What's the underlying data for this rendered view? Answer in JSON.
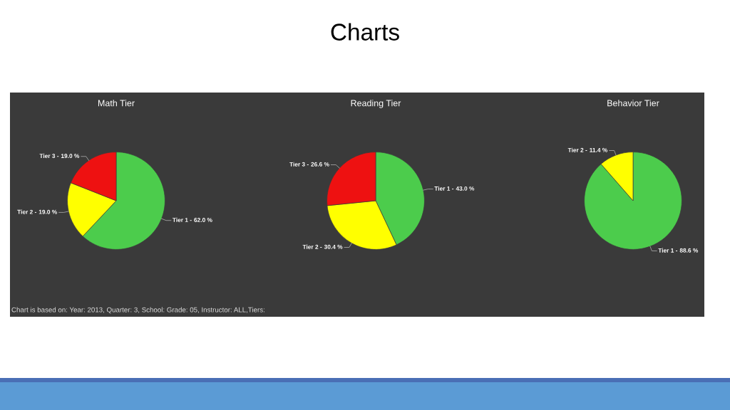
{
  "chart_data": [
    {
      "type": "pie",
      "title": "Math Tier",
      "categories": [
        "Tier 1 -",
        "Tier 2 -",
        "Tier 3 -"
      ],
      "values": [
        62.0,
        19.0,
        19.0
      ],
      "colors": [
        "#4ccc4c",
        "#ffff00",
        "#ee1111"
      ],
      "value_labels": [
        "62.0 %",
        "19.0 %",
        "19.0 %"
      ],
      "annotations": [
        "Charts",
        "Chart is based on: Year: 2013, Quarter: 3, School: Grade: 05, Instructor: ALL,Tiers:"
      ]
    },
    {
      "type": "pie",
      "title": "Reading Tier",
      "categories": [
        "Tier 1 -",
        "Tier 2 -",
        "Tier 3 -"
      ],
      "values": [
        43.0,
        30.4,
        26.6
      ],
      "colors": [
        "#4ccc4c",
        "#ffff00",
        "#ee1111"
      ],
      "value_labels": [
        "43.0 %",
        "30.4 %",
        "26.6 %"
      ]
    },
    {
      "type": "pie",
      "title": "Behavior Tier",
      "categories": [
        "Tier 1 -",
        "Tier 2 -"
      ],
      "values": [
        88.6,
        11.4
      ],
      "colors": [
        "#4ccc4c",
        "#ffff00"
      ],
      "value_labels": [
        "88.6 %",
        "11.4 %"
      ]
    }
  ]
}
